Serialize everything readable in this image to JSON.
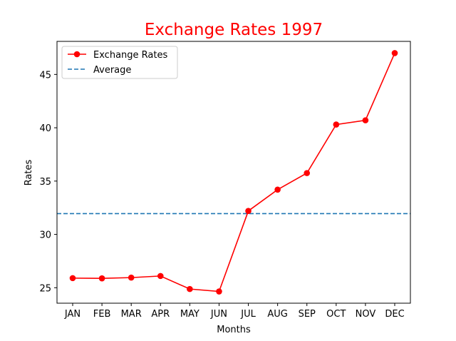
{
  "chart_data": {
    "type": "line",
    "title": "Exchange Rates 1997",
    "xlabel": "Months",
    "ylabel": "Rates",
    "categories": [
      "JAN",
      "FEB",
      "MAR",
      "APR",
      "MAY",
      "JUN",
      "JUL",
      "AUG",
      "SEP",
      "OCT",
      "NOV",
      "DEC"
    ],
    "series": [
      {
        "name": "Exchange Rates",
        "values": [
          25.9,
          25.88,
          25.95,
          26.1,
          24.88,
          24.65,
          32.2,
          34.2,
          35.75,
          40.3,
          40.7,
          47.0
        ],
        "color": "#ff0000",
        "marker": "circle"
      }
    ],
    "average": {
      "name": "Average",
      "value": 31.95,
      "color": "#1f77b4",
      "style": "dashed"
    },
    "ylim": [
      23.55,
      48.1
    ],
    "yticks": [
      25,
      30,
      35,
      40,
      45
    ],
    "grid": false,
    "legend": "top-left",
    "title_color": "#ff0000"
  }
}
